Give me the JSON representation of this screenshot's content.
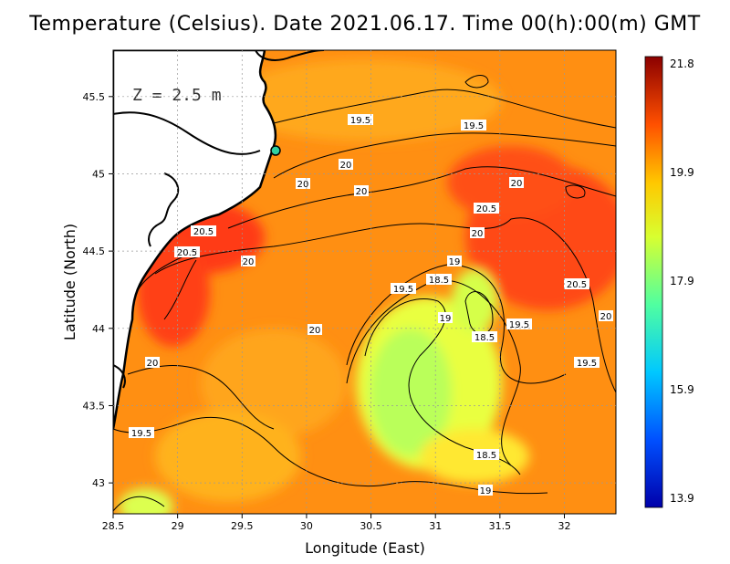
{
  "title": "Temperature (Celsius). Date 2021.06.17. Time 00(h):00(m) GMT",
  "depth_label": "Z = 2.5 m",
  "x_axis": {
    "label": "Longitude (East)",
    "ticks": [
      "28.5",
      "29",
      "29.5",
      "30",
      "30.5",
      "31",
      "31.5",
      "32"
    ]
  },
  "y_axis": {
    "label": "Latitude (North)",
    "ticks": [
      "43",
      "43.5",
      "44",
      "44.5",
      "45",
      "45.5"
    ]
  },
  "colorbar": {
    "max": "21.8",
    "ticks": [
      "21.8",
      "19.9",
      "17.9",
      "15.9",
      "13.9"
    ],
    "min": "13.9"
  },
  "contour_labels": [
    "19.5",
    "19.5",
    "20",
    "20",
    "20",
    "20",
    "20.5",
    "20.5",
    "20",
    "20",
    "19",
    "19.5",
    "18.5",
    "19",
    "18.5",
    "19.5",
    "20.5",
    "20",
    "19.5",
    "20",
    "19.5",
    "18.5",
    "19",
    "20",
    "20.5"
  ],
  "colors": {
    "land": "#ffffff",
    "coast": "#000000",
    "warm": "#ff5a10",
    "cool": "#a8ff58"
  }
}
